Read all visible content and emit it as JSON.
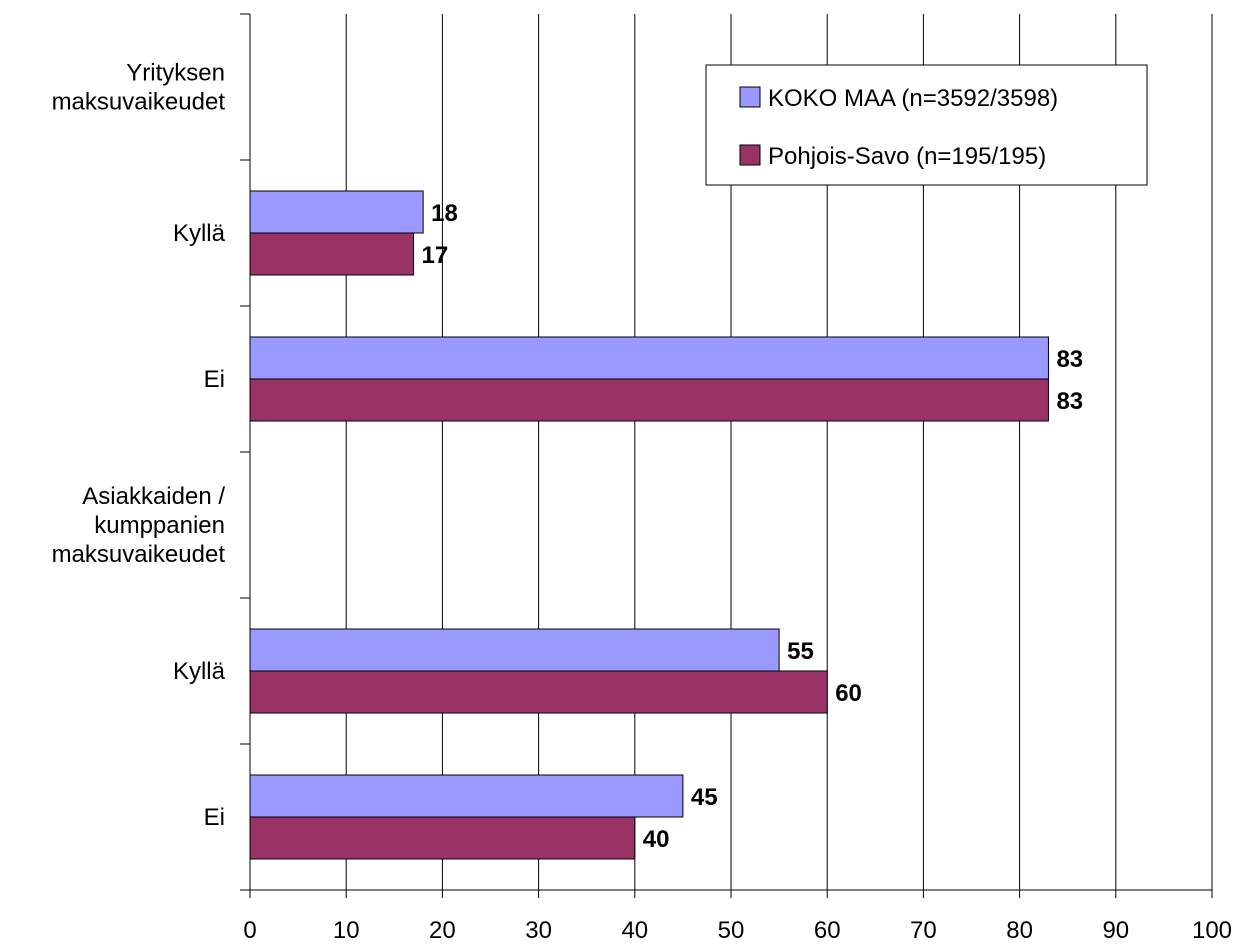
{
  "chart_data": {
    "type": "bar",
    "orientation": "horizontal",
    "title": "",
    "xlabel": "",
    "ylabel": "",
    "xlim": [
      0,
      100
    ],
    "x_ticks": [
      "0",
      "10",
      "20",
      "30",
      "40",
      "50",
      "60",
      "70",
      "80",
      "90",
      "100"
    ],
    "grid": "vertical",
    "legend_position": "top-right",
    "rows": [
      {
        "label": "Yrityksen\nmaksuvaikeudet",
        "kind": "group"
      },
      {
        "label": "Kyllä",
        "kind": "category",
        "values": [
          18,
          17
        ]
      },
      {
        "label": "Ei",
        "kind": "category",
        "values": [
          83,
          83
        ]
      },
      {
        "label": "Asiakkaiden /\nkumppanien\nmaksuvaikeudet",
        "kind": "group"
      },
      {
        "label": "Kyllä",
        "kind": "category",
        "values": [
          55,
          60
        ]
      },
      {
        "label": "Ei",
        "kind": "category",
        "values": [
          45,
          40
        ]
      }
    ],
    "series": [
      {
        "name": "KOKO MAA (n=3592/3598)",
        "color": "#9999ff"
      },
      {
        "name": "Pohjois-Savo (n=195/195)",
        "color": "#993366"
      }
    ]
  }
}
